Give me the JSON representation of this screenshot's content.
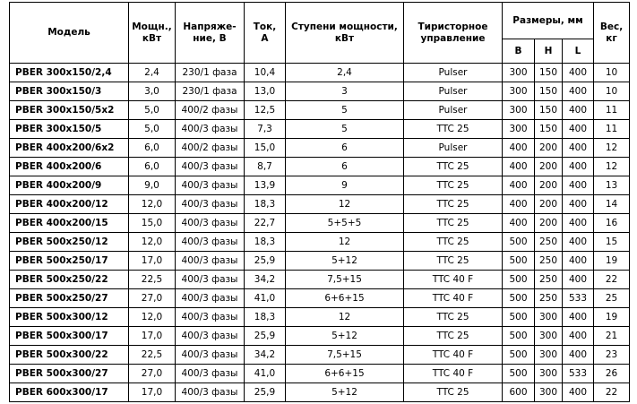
{
  "table": {
    "header": {
      "model": "Модель",
      "power": "Мощн.,\nкВт",
      "voltage": "Напряже-\nние, В",
      "current": "Ток,\nА",
      "steps": "Ступени мощности,\nкВт",
      "control": "Тиристорное\nуправление",
      "dims": "Размеры, мм",
      "dims_sub": [
        "B",
        "H",
        "L"
      ],
      "weight": "Вес,\nкг"
    },
    "rows": [
      [
        "PBER 300x150/2,4",
        "2,4",
        "230/1 фаза",
        "10,4",
        "2,4",
        "Pulser",
        "300",
        "150",
        "400",
        "10"
      ],
      [
        "PBER 300x150/3",
        "3,0",
        "230/1 фаза",
        "13,0",
        "3",
        "Pulser",
        "300",
        "150",
        "400",
        "10"
      ],
      [
        "PBER 300x150/5x2",
        "5,0",
        "400/2 фазы",
        "12,5",
        "5",
        "Pulser",
        "300",
        "150",
        "400",
        "11"
      ],
      [
        "PBER 300x150/5",
        "5,0",
        "400/3 фазы",
        "7,3",
        "5",
        "TTC 25",
        "300",
        "150",
        "400",
        "11"
      ],
      [
        "PBER 400x200/6x2",
        "6,0",
        "400/2 фазы",
        "15,0",
        "6",
        "Pulser",
        "400",
        "200",
        "400",
        "12"
      ],
      [
        "PBER 400x200/6",
        "6,0",
        "400/3 фазы",
        "8,7",
        "6",
        "TTC 25",
        "400",
        "200",
        "400",
        "12"
      ],
      [
        "PBER 400x200/9",
        "9,0",
        "400/3 фазы",
        "13,9",
        "9",
        "TTC 25",
        "400",
        "200",
        "400",
        "13"
      ],
      [
        "PBER 400x200/12",
        "12,0",
        "400/3 фазы",
        "18,3",
        "12",
        "TTC 25",
        "400",
        "200",
        "400",
        "14"
      ],
      [
        "PBER 400x200/15",
        "15,0",
        "400/3 фазы",
        "22,7",
        "5+5+5",
        "TTC 25",
        "400",
        "200",
        "400",
        "16"
      ],
      [
        "PBER 500x250/12",
        "12,0",
        "400/3 фазы",
        "18,3",
        "12",
        "TTC 25",
        "500",
        "250",
        "400",
        "15"
      ],
      [
        "PBER 500x250/17",
        "17,0",
        "400/3 фазы",
        "25,9",
        "5+12",
        "TTC 25",
        "500",
        "250",
        "400",
        "19"
      ],
      [
        "PBER 500x250/22",
        "22,5",
        "400/3 фазы",
        "34,2",
        "7,5+15",
        "TTC 40 F",
        "500",
        "250",
        "400",
        "22"
      ],
      [
        "PBER 500x250/27",
        "27,0",
        "400/3 фазы",
        "41,0",
        "6+6+15",
        "TTC 40 F",
        "500",
        "250",
        "533",
        "25"
      ],
      [
        "PBER 500x300/12",
        "12,0",
        "400/3 фазы",
        "18,3",
        "12",
        "TTC 25",
        "500",
        "300",
        "400",
        "19"
      ],
      [
        "PBER 500x300/17",
        "17,0",
        "400/3 фазы",
        "25,9",
        "5+12",
        "TTC 25",
        "500",
        "300",
        "400",
        "21"
      ],
      [
        "PBER 500x300/22",
        "22,5",
        "400/3 фазы",
        "34,2",
        "7,5+15",
        "TTC 40 F",
        "500",
        "300",
        "400",
        "23"
      ],
      [
        "PBER 500x300/27",
        "27,0",
        "400/3 фазы",
        "41,0",
        "6+6+15",
        "TTC 40 F",
        "500",
        "300",
        "533",
        "26"
      ],
      [
        "PBER 600x300/17",
        "17,0",
        "400/3 фазы",
        "25,9",
        "5+12",
        "TTC 25",
        "600",
        "300",
        "400",
        "22"
      ]
    ]
  }
}
